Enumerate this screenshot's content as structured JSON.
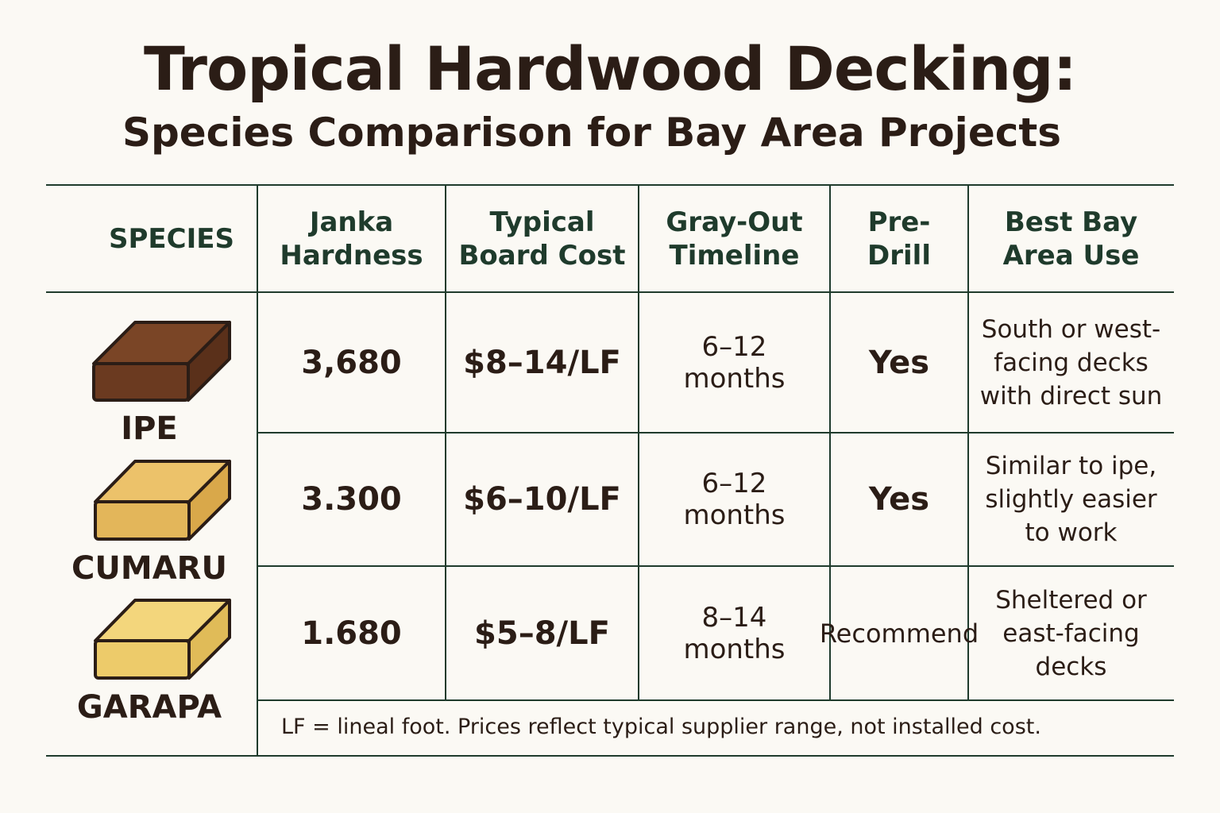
{
  "header": {
    "title": "Tropical Hardwood Decking:",
    "subtitle": "Species Comparison for Bay Area Projects"
  },
  "table": {
    "columns": [
      "SPECIES",
      "Janka Hardness",
      "Typical Board Cost",
      "Gray-Out Timeline",
      "Pre-Drill",
      "Best Bay Area Use"
    ],
    "rows": [
      [
        "IPE",
        "3,680",
        "$8–14/LF",
        "6–12 months",
        "Yes",
        "South or west-facing decks with direct sun"
      ],
      [
        "CUMARU",
        "3.300",
        "$6–10/LF",
        "6–12 months",
        "Yes",
        "Similar to ipe, slightly easier to work"
      ],
      [
        "GARAPA",
        "1.680",
        "$5–8/LF",
        "8–14 months",
        "Recommend",
        "Sheltered or east-facing decks"
      ]
    ],
    "footnote": "LF = lineal foot. Prices reflect typical supplier range, not installed cost."
  }
}
